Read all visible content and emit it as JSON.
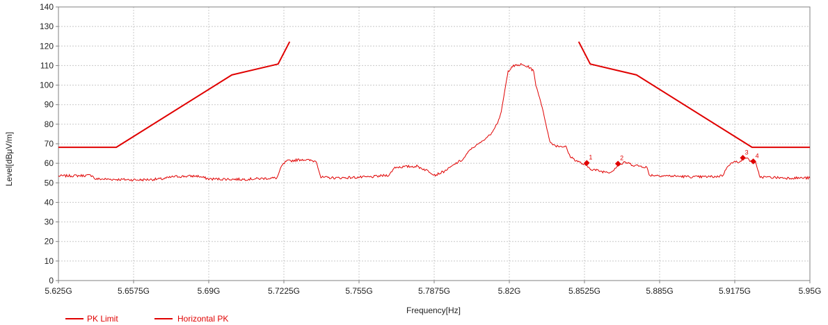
{
  "chart_data": {
    "type": "line",
    "xlabel": "Frequency[Hz]",
    "ylabel": "Level[dBμV/m]",
    "xlim": [
      5.625,
      5.95
    ],
    "ylim": [
      0,
      140
    ],
    "x_unit_suffix": "G",
    "x_ticks": [
      "5.625G",
      "5.6575G",
      "5.69G",
      "5.7225G",
      "5.755G",
      "5.7875G",
      "5.82G",
      "5.8525G",
      "5.885G",
      "5.9175G",
      "5.95G"
    ],
    "x_tick_values": [
      5.625,
      5.6575,
      5.69,
      5.7225,
      5.755,
      5.7875,
      5.82,
      5.8525,
      5.885,
      5.9175,
      5.95
    ],
    "y_ticks": [
      0,
      10,
      20,
      30,
      40,
      50,
      60,
      70,
      80,
      90,
      100,
      110,
      120,
      130,
      140
    ],
    "grid": true,
    "legend_position": "bottom-left",
    "colors": {
      "limit": "#e00000",
      "trace": "#e00000",
      "grid": "#c8c8c8",
      "axis": "#808080"
    },
    "series": [
      {
        "name": "PK Limit",
        "segments": [
          {
            "x": [
              5.625,
              5.65,
              5.7,
              5.72,
              5.725
            ],
            "y": [
              68.2,
              68.2,
              105.2,
              110.8,
              122.2
            ]
          },
          {
            "x": [
              5.85,
              5.855,
              5.875,
              5.925,
              5.95
            ],
            "y": [
              122.2,
              110.8,
              105.2,
              68.2,
              68.2
            ]
          }
        ]
      },
      {
        "name": "Horizontal PK",
        "points": [
          [
            5.625,
            53.5
          ],
          [
            5.64,
            53.8
          ],
          [
            5.6405,
            52.0
          ],
          [
            5.66,
            51.5
          ],
          [
            5.67,
            52.0
          ],
          [
            5.675,
            53.2
          ],
          [
            5.685,
            53.5
          ],
          [
            5.69,
            52.0
          ],
          [
            5.705,
            51.8
          ],
          [
            5.715,
            52.3
          ],
          [
            5.7195,
            52.5
          ],
          [
            5.7215,
            58.5
          ],
          [
            5.7235,
            61.0
          ],
          [
            5.7305,
            62.0
          ],
          [
            5.7365,
            61.0
          ],
          [
            5.7385,
            52.8
          ],
          [
            5.745,
            52.5
          ],
          [
            5.76,
            53.0
          ],
          [
            5.768,
            54.0
          ],
          [
            5.7705,
            58.0
          ],
          [
            5.78,
            58.5
          ],
          [
            5.785,
            56.0
          ],
          [
            5.788,
            54.0
          ],
          [
            5.792,
            56.0
          ],
          [
            5.797,
            60.0
          ],
          [
            5.8,
            62.0
          ],
          [
            5.803,
            67.0
          ],
          [
            5.808,
            71.0
          ],
          [
            5.812,
            75.0
          ],
          [
            5.815,
            81.0
          ],
          [
            5.8165,
            86.0
          ],
          [
            5.818,
            97.0
          ],
          [
            5.8195,
            107.0
          ],
          [
            5.821,
            109.5
          ],
          [
            5.825,
            110.5
          ],
          [
            5.829,
            109.0
          ],
          [
            5.8305,
            107.0
          ],
          [
            5.8315,
            100.0
          ],
          [
            5.8335,
            92.0
          ],
          [
            5.8355,
            82.0
          ],
          [
            5.8375,
            71.0
          ],
          [
            5.84,
            69.0
          ],
          [
            5.8445,
            68.5
          ],
          [
            5.846,
            64.0
          ],
          [
            5.848,
            62.0
          ],
          [
            5.852,
            59.5
          ],
          [
            5.8555,
            57.0
          ],
          [
            5.86,
            55.8
          ],
          [
            5.864,
            55.5
          ],
          [
            5.8665,
            58.5
          ],
          [
            5.87,
            60.5
          ],
          [
            5.874,
            59.0
          ],
          [
            5.877,
            58.5
          ],
          [
            5.8795,
            58.0
          ],
          [
            5.8805,
            54.0
          ],
          [
            5.89,
            53.5
          ],
          [
            5.9,
            53.0
          ],
          [
            5.91,
            53.2
          ],
          [
            5.9125,
            54.0
          ],
          [
            5.9145,
            59.0
          ],
          [
            5.917,
            60.5
          ],
          [
            5.9195,
            61.0
          ],
          [
            5.922,
            63.0
          ],
          [
            5.924,
            61.5
          ],
          [
            5.9265,
            60.5
          ],
          [
            5.9275,
            56.0
          ],
          [
            5.9285,
            53.0
          ],
          [
            5.94,
            52.5
          ],
          [
            5.95,
            52.5
          ]
        ]
      }
    ],
    "markers": [
      {
        "label": "1",
        "x": 5.8535,
        "y": 60.2
      },
      {
        "label": "2",
        "x": 5.867,
        "y": 59.8
      },
      {
        "label": "3",
        "x": 5.921,
        "y": 62.8
      },
      {
        "label": "4",
        "x": 5.9255,
        "y": 61.0
      }
    ]
  }
}
